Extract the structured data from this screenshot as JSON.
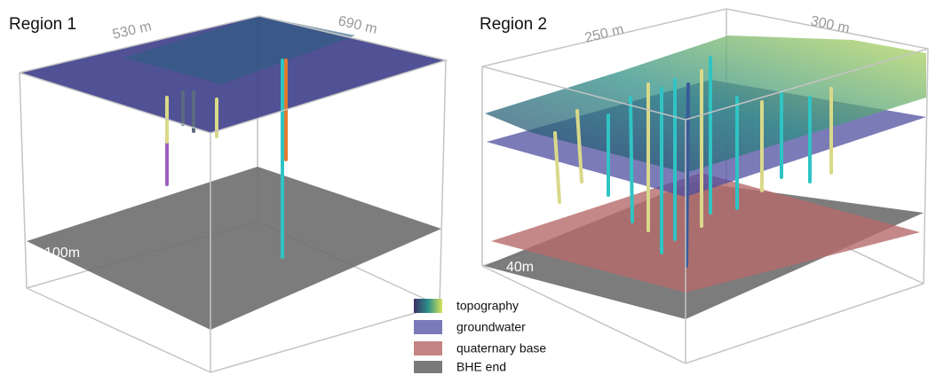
{
  "panels": [
    {
      "title": "Region 1",
      "dims": [
        "530 m",
        "690 m"
      ],
      "depth": "100m"
    },
    {
      "title": "Region 2",
      "dims": [
        "250 m",
        "300 m"
      ],
      "depth": "40m"
    }
  ],
  "legend": [
    {
      "label": "topography"
    },
    {
      "label": "groundwater"
    },
    {
      "label": "quaternary base"
    },
    {
      "label": "BHE end"
    }
  ]
}
